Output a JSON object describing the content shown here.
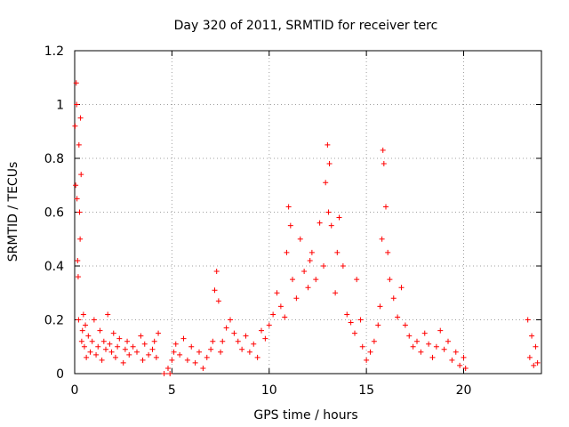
{
  "chart_data": {
    "type": "scatter",
    "title": "Day 320 of 2011, SRMTID for receiver terc",
    "xlabel": "GPS time / hours",
    "ylabel": "SRMTID / TECUs",
    "xlim": [
      0,
      24
    ],
    "ylim": [
      0,
      1.2
    ],
    "xticks": [
      0,
      5,
      10,
      15,
      20
    ],
    "yticks": [
      0,
      0.2,
      0.4,
      0.6,
      0.8,
      1,
      1.2
    ],
    "xtick_labels": [
      "0",
      "5",
      "10",
      "15",
      "20"
    ],
    "ytick_labels": [
      "0",
      "0.2",
      "0.4",
      "0.6",
      "0.8",
      "1",
      "1.2"
    ],
    "grid": true,
    "marker": "+",
    "color": "#ff0000",
    "series": [
      {
        "name": "SRMTID",
        "x": [
          0.02,
          0.05,
          0.08,
          0.1,
          0.12,
          0.15,
          0.18,
          0.2,
          0.22,
          0.25,
          0.28,
          0.3,
          0.33,
          0.36,
          0.4,
          0.45,
          0.5,
          0.55,
          0.6,
          0.7,
          0.8,
          0.9,
          1.0,
          1.1,
          1.2,
          1.3,
          1.4,
          1.5,
          1.6,
          1.7,
          1.8,
          1.9,
          2.0,
          2.1,
          2.2,
          2.3,
          2.5,
          2.6,
          2.7,
          2.8,
          3.0,
          3.2,
          3.4,
          3.5,
          3.6,
          3.8,
          4.0,
          4.1,
          4.2,
          4.3,
          4.6,
          4.8,
          4.9,
          5.0,
          5.1,
          5.2,
          5.4,
          5.6,
          5.8,
          6.0,
          6.2,
          6.4,
          6.6,
          6.8,
          7.0,
          7.1,
          7.2,
          7.3,
          7.4,
          7.5,
          7.6,
          7.8,
          8.0,
          8.2,
          8.4,
          8.6,
          8.8,
          9.0,
          9.2,
          9.4,
          9.6,
          9.8,
          10.0,
          10.2,
          10.4,
          10.6,
          10.8,
          10.9,
          11.0,
          11.1,
          11.2,
          11.4,
          11.6,
          11.8,
          12.0,
          12.1,
          12.2,
          12.4,
          12.6,
          12.8,
          12.9,
          13.0,
          13.05,
          13.1,
          13.2,
          13.4,
          13.5,
          13.6,
          13.8,
          14.0,
          14.2,
          14.4,
          14.5,
          14.7,
          14.8,
          15.0,
          15.2,
          15.4,
          15.6,
          15.7,
          15.8,
          15.85,
          15.9,
          16.0,
          16.1,
          16.2,
          16.4,
          16.6,
          16.8,
          17.0,
          17.2,
          17.4,
          17.6,
          17.8,
          18.0,
          18.2,
          18.4,
          18.6,
          18.8,
          19.0,
          19.2,
          19.4,
          19.6,
          19.8,
          20.0,
          20.1,
          23.3,
          23.4,
          23.5,
          23.6,
          23.7,
          23.8
        ],
        "y": [
          0.92,
          0.7,
          1.08,
          1.0,
          0.65,
          0.42,
          0.36,
          0.2,
          0.85,
          0.6,
          0.5,
          0.95,
          0.74,
          0.12,
          0.16,
          0.22,
          0.1,
          0.18,
          0.06,
          0.14,
          0.08,
          0.12,
          0.2,
          0.07,
          0.1,
          0.16,
          0.05,
          0.12,
          0.09,
          0.22,
          0.11,
          0.08,
          0.15,
          0.06,
          0.1,
          0.13,
          0.04,
          0.09,
          0.12,
          0.07,
          0.1,
          0.08,
          0.14,
          0.05,
          0.11,
          0.07,
          0.09,
          0.12,
          0.06,
          0.15,
          0.0,
          0.02,
          0.0,
          0.05,
          0.08,
          0.11,
          0.07,
          0.13,
          0.05,
          0.1,
          0.04,
          0.08,
          0.02,
          0.06,
          0.09,
          0.12,
          0.31,
          0.38,
          0.27,
          0.08,
          0.12,
          0.17,
          0.2,
          0.15,
          0.12,
          0.09,
          0.14,
          0.08,
          0.11,
          0.06,
          0.16,
          0.13,
          0.18,
          0.22,
          0.3,
          0.25,
          0.21,
          0.45,
          0.62,
          0.55,
          0.35,
          0.28,
          0.5,
          0.38,
          0.32,
          0.42,
          0.45,
          0.35,
          0.56,
          0.4,
          0.71,
          0.85,
          0.6,
          0.78,
          0.55,
          0.3,
          0.45,
          0.58,
          0.4,
          0.22,
          0.19,
          0.15,
          0.35,
          0.2,
          0.1,
          0.05,
          0.08,
          0.12,
          0.18,
          0.25,
          0.5,
          0.83,
          0.78,
          0.62,
          0.45,
          0.35,
          0.28,
          0.21,
          0.32,
          0.18,
          0.14,
          0.1,
          0.12,
          0.08,
          0.15,
          0.11,
          0.06,
          0.1,
          0.16,
          0.09,
          0.12,
          0.05,
          0.08,
          0.03,
          0.06,
          0.02,
          0.2,
          0.06,
          0.14,
          0.03,
          0.1,
          0.04
        ]
      }
    ]
  }
}
